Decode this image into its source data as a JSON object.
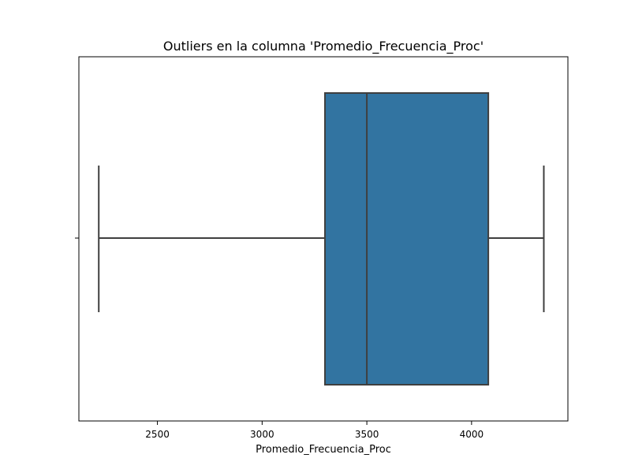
{
  "chart_data": {
    "type": "box",
    "title": "Outliers en la columna 'Promedio_Frecuencia_Proc'",
    "xlabel": "Promedio_Frecuencia_Proc",
    "ylabel": "",
    "orientation": "horizontal",
    "xlim": [
      2125,
      4460
    ],
    "xticks": [
      2500,
      3000,
      3500,
      4000
    ],
    "box": {
      "whisker_low": 2220,
      "q1": 3300,
      "median": 3500,
      "q3": 4080,
      "whisker_high": 4345
    },
    "colors": {
      "box_fill": "#3274a1",
      "line": "#3f3f3f"
    },
    "grid": false,
    "legend": "none"
  }
}
